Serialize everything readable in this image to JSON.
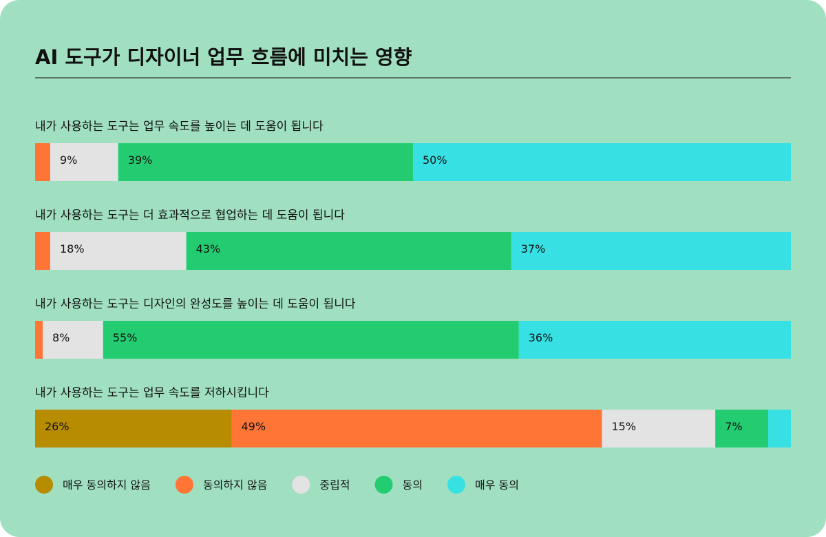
{
  "chart_data": {
    "type": "bar",
    "orientation": "horizontal",
    "stacked": true,
    "title": "AI 도구가 디자이너 업무 흐름에 미치는 영향",
    "xlim": [
      0,
      100
    ],
    "categories": [
      "내가 사용하는 도구는 업무 속도를 높이는 데 도움이 됩니다",
      "내가 사용하는 도구는 더 효과적으로 협업하는 데 도움이 됩니다",
      "내가 사용하는 도구는 디자인의 완성도를 높이는 데 도움이 됩니다",
      "내가 사용하는 도구는 업무 속도를 저하시킵니다"
    ],
    "series": [
      {
        "name": "매우 동의하지 않음",
        "color": "#b88c00",
        "values": [
          0,
          0,
          0,
          26
        ]
      },
      {
        "name": "동의하지 않음",
        "color": "#ff7536",
        "values": [
          2,
          2,
          1,
          49
        ]
      },
      {
        "name": "중립적",
        "color": "#e3e3e3",
        "values": [
          9,
          18,
          8,
          15
        ]
      },
      {
        "name": "동의",
        "color": "#24cc71",
        "values": [
          39,
          43,
          55,
          7
        ]
      },
      {
        "name": "매우 동의",
        "color": "#36e0e3",
        "values": [
          50,
          37,
          36,
          3
        ]
      }
    ],
    "data_labels": [
      [
        null,
        null,
        "9%",
        "39%",
        "50%"
      ],
      [
        null,
        null,
        "18%",
        "43%",
        "37%"
      ],
      [
        null,
        null,
        "8%",
        "55%",
        "36%"
      ],
      [
        "26%",
        "49%",
        "15%",
        "7%",
        null
      ]
    ],
    "legend_position": "bottom-left",
    "grid": false
  }
}
